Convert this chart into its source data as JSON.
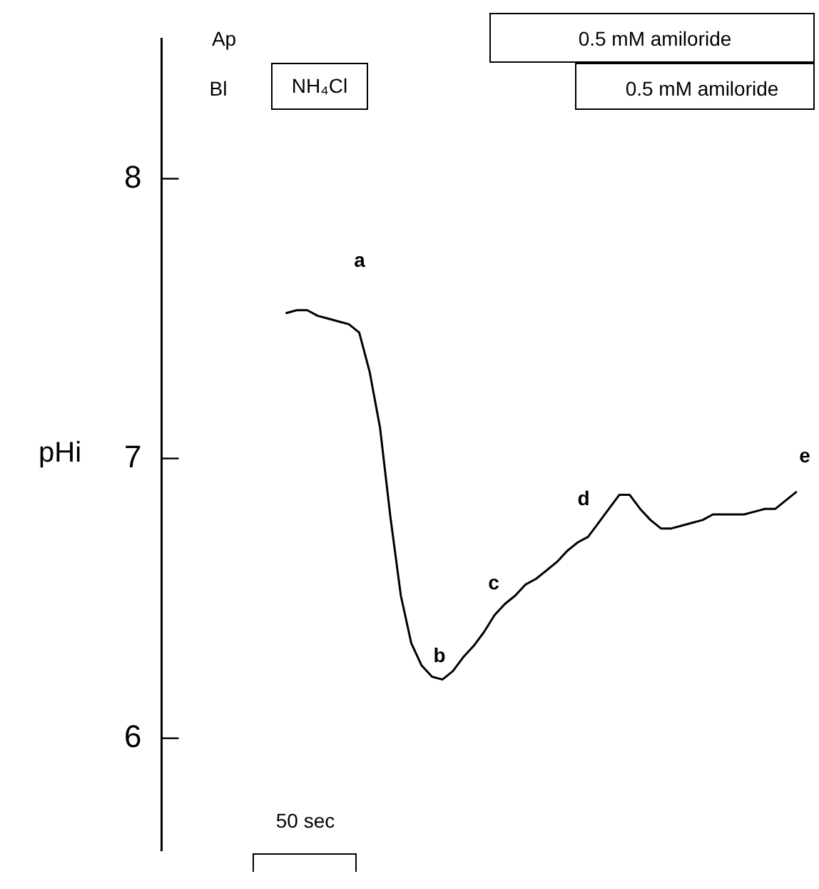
{
  "chart_data": {
    "type": "line",
    "ylabel": "pHi",
    "categories": [
      null,
      null,
      null,
      null,
      null,
      null,
      null,
      null,
      null,
      null,
      null,
      null,
      null,
      null,
      null,
      null,
      null,
      null,
      null,
      null,
      null,
      null,
      null,
      null,
      null,
      null,
      null,
      null,
      null,
      null,
      null,
      null,
      null,
      null,
      null,
      null,
      null,
      null,
      null,
      null,
      null,
      null,
      null,
      null,
      null,
      null,
      null,
      null,
      null,
      null,
      null,
      null,
      null,
      null,
      null,
      null,
      null,
      null,
      null,
      null,
      null,
      null
    ],
    "series": [
      {
        "color": "#000000",
        "values": [
          null,
          null,
          null,
          null,
          null,
          null,
          null,
          null,
          null,
          null,
          null,
          null,
          7.52,
          7.53,
          7.53,
          7.51,
          7.5,
          7.49,
          7.48,
          7.45,
          7.31,
          7.11,
          6.79,
          6.51,
          6.34,
          6.26,
          6.22,
          6.21,
          6.24,
          6.29,
          6.33,
          6.38,
          6.44,
          6.48,
          6.51,
          6.55,
          6.57,
          6.6,
          6.63,
          6.67,
          6.7,
          6.72,
          6.77,
          6.82,
          6.87,
          6.87,
          6.82,
          6.78,
          6.75,
          6.75,
          6.76,
          6.77,
          6.78,
          6.8,
          6.8,
          6.8,
          6.8,
          6.81,
          6.82,
          6.82,
          6.85,
          6.88
        ]
      }
    ],
    "ylim": [
      5.6,
      8.5
    ],
    "yticks": [
      6,
      7,
      8
    ],
    "tick_labels": "y",
    "grid": false,
    "legend": false,
    "marker": "none",
    "line_style": "solid",
    "annotations": [
      "NH₄Cl",
      "0.5 mM amiloride",
      "0.5 mM amiloride",
      "Ap",
      "Bl",
      "a",
      "b",
      "c",
      "d",
      "e",
      "50 sec"
    ]
  }
}
